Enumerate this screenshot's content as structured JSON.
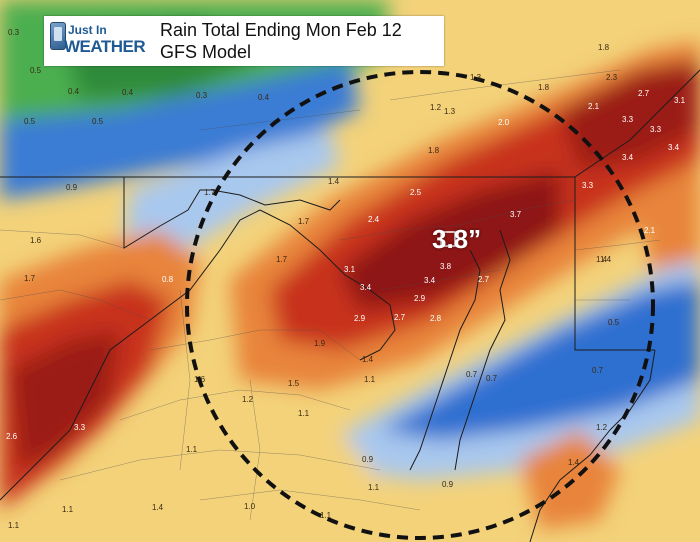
{
  "header": {
    "logo_line1": "Just In",
    "logo_line2": "WEATHER",
    "title_line1": "Rain Total Ending Mon Feb 12",
    "title_line2": "GFS Model"
  },
  "peak_label": "3.8”",
  "values": [
    "0.3",
    "0.5",
    "0.4",
    "0.3",
    "0.5",
    "0.4",
    "0.5",
    "0.4",
    "1.3",
    "1.2",
    "1.3",
    "1.8",
    "1.8",
    "2.3",
    "2.7",
    "3.1",
    "2.1",
    "3.3",
    "3.3",
    "2.0",
    "1.8",
    "3.4",
    "3.4",
    "0.9",
    "1.7",
    "1.4",
    "2.5",
    "3.3",
    "1.7",
    "2.4",
    "3.7",
    "1.6",
    "1.7",
    "1.7",
    "3.1",
    "3.8",
    "2.1",
    "1.4",
    "1.4",
    "0.8",
    "3.4",
    "3.4",
    "2.7",
    "2.9",
    "2.8",
    "2.9",
    "2.7",
    "0.5",
    "1.9",
    "1.4",
    "1.6",
    "1.5",
    "0.7",
    "0.7",
    "0.7",
    "1.1",
    "1.2",
    "1.1",
    "3.3",
    "2.6",
    "1.1",
    "1.2",
    "1.4",
    "0.9",
    "1.1",
    "1.0",
    "1.1",
    "1.4",
    "0.9",
    "1.1",
    "1.1"
  ],
  "colors": {
    "green": "#4caf50",
    "blue": "#2f6fd0",
    "light_blue": "#a9c8ee",
    "yellow": "#f3d27a",
    "orange": "#e8843a",
    "red": "#c8321f",
    "dark_red": "#8e1414"
  }
}
